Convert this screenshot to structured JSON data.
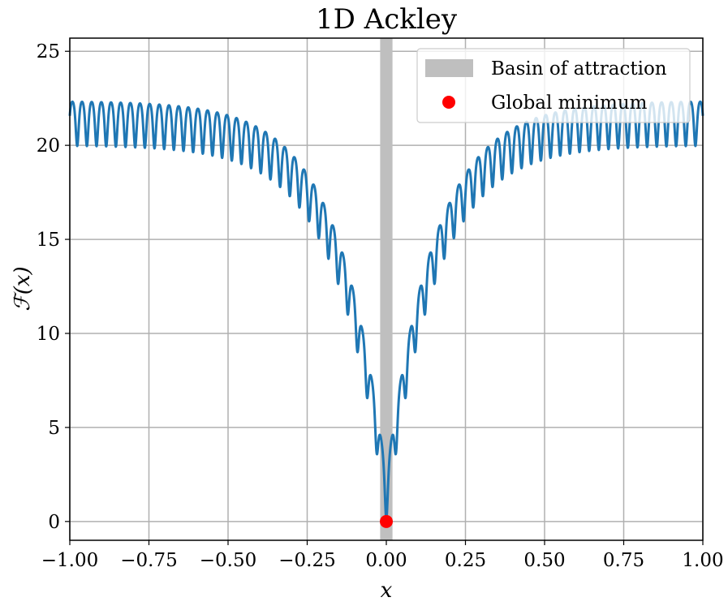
{
  "chart_data": {
    "type": "line",
    "title": "1D Ackley",
    "xlabel": "x",
    "ylabel": "ℱ(x)",
    "xlim": [
      -1.0,
      1.0
    ],
    "ylim": [
      -1.0,
      25.7
    ],
    "xticks": [
      "−1.00",
      "−0.75",
      "−0.50",
      "−0.25",
      "0.00",
      "0.25",
      "0.50",
      "0.75",
      "1.00"
    ],
    "xtick_values": [
      -1.0,
      -0.75,
      -0.5,
      -0.25,
      0.0,
      0.25,
      0.5,
      0.75,
      1.0
    ],
    "yticks": [
      "0",
      "5",
      "10",
      "15",
      "20",
      "25"
    ],
    "ytick_values": [
      0,
      5,
      10,
      15,
      20,
      25
    ],
    "grid": true,
    "legend_position": "top-right",
    "series": [
      {
        "name": "",
        "kind": "curve",
        "color": "#1f77b4",
        "function": "ackley_1d",
        "parameters": {
          "a": 20,
          "b": 0.2,
          "c": 2,
          "domain_scale": 32.768
        },
        "x_range": [
          -1.0,
          1.0
        ],
        "key_points": [
          [
            -1.0,
            22.3
          ],
          [
            -0.5,
            21.4
          ],
          [
            -0.25,
            17.6
          ],
          [
            -0.1,
            10.0
          ],
          [
            -0.05,
            7.0
          ],
          [
            0.0,
            0.0
          ],
          [
            0.05,
            7.0
          ],
          [
            0.1,
            10.0
          ],
          [
            0.25,
            17.6
          ],
          [
            0.5,
            21.4
          ],
          [
            1.0,
            22.3
          ]
        ]
      }
    ],
    "annotations": [
      {
        "name": "Basin of attraction",
        "kind": "vertical-band",
        "x_range": [
          -0.0195,
          0.0195
        ],
        "color": "#bfbfbf"
      },
      {
        "name": "Global minimum",
        "kind": "point",
        "x": 0.0,
        "y": 0.0,
        "color": "#ff0000"
      }
    ],
    "legend": [
      {
        "label": "Basin of attraction",
        "marker": "band",
        "color": "#bfbfbf"
      },
      {
        "label": "Global minimum",
        "marker": "dot",
        "color": "#ff0000"
      }
    ]
  }
}
